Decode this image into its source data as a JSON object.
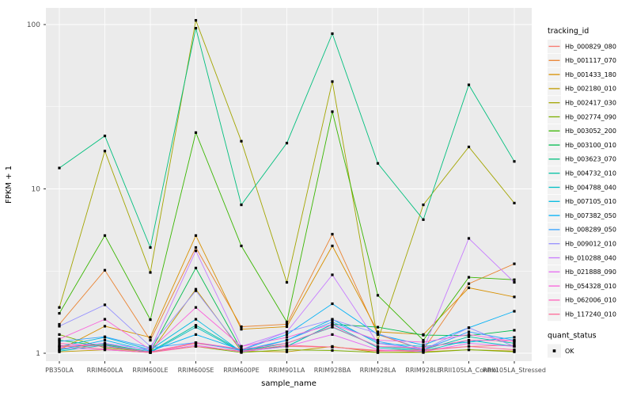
{
  "chart_data": {
    "type": "line",
    "title": "",
    "xlabel": "sample_name",
    "ylabel": "FPKM + 1",
    "y_scale": "log10",
    "ylim": [
      0.9,
      126
    ],
    "y_ticks": [
      1,
      10,
      100
    ],
    "y_minor_ticks": [
      3.162,
      31.62
    ],
    "grid": "on",
    "legend_position": "right",
    "legend_title": "tracking_id",
    "quant_legend": {
      "title": "quant_status",
      "label": "OK",
      "marker_color": "#000000"
    },
    "panel_bg": "#EBEBEB",
    "grid_color": "#FFFFFF",
    "tick_label_color": "#4D4D4D",
    "axis_title_color": "#000000",
    "categories": [
      "PB350LA",
      "RRIM600LA",
      "RRIM600LE",
      "RRIM600SE",
      "RRIM600PE",
      "RRIM901LA",
      "RRIM928BA",
      "RRIM928LA",
      "RRIM928LE",
      "RRII105LA_Control",
      "RRII105LA_Stressed"
    ],
    "series": [
      {
        "name": "Hb_000829_080",
        "color": "#F8766D",
        "values": [
          1.09,
          1.13,
          1.01,
          1.15,
          1.05,
          1.1,
          1.09,
          1.04,
          1.05,
          1.1,
          1.12
        ]
      },
      {
        "name": "Hb_001117_070",
        "color": "#EA8331",
        "values": [
          1.5,
          3.2,
          1.2,
          4.4,
          1.45,
          1.5,
          5.3,
          1.3,
          1.05,
          2.65,
          3.5
        ]
      },
      {
        "name": "Hb_001433_180",
        "color": "#D89000",
        "values": [
          1.05,
          1.46,
          1.25,
          5.2,
          1.4,
          1.45,
          4.5,
          1.35,
          1.3,
          2.5,
          2.2
        ]
      },
      {
        "name": "Hb_002180_010",
        "color": "#C09B00",
        "values": [
          1.02,
          1.05,
          1.01,
          2.45,
          1.03,
          1.02,
          1.1,
          1.01,
          1.02,
          1.05,
          1.03
        ]
      },
      {
        "name": "Hb_002417_030",
        "color": "#A3A500",
        "values": [
          1.9,
          17.0,
          3.1,
          106.0,
          19.5,
          2.7,
          45.0,
          1.2,
          8.0,
          18.0,
          8.2
        ]
      },
      {
        "name": "Hb_002774_090",
        "color": "#7CAE00",
        "values": [
          1.3,
          1.08,
          1.02,
          1.1,
          1.01,
          1.05,
          1.04,
          1.01,
          1.01,
          1.05,
          1.02
        ]
      },
      {
        "name": "Hb_003052_200",
        "color": "#39B600",
        "values": [
          1.75,
          5.2,
          1.6,
          22.0,
          4.5,
          1.55,
          29.5,
          2.25,
          1.2,
          2.9,
          2.8
        ]
      },
      {
        "name": "Hb_003100_010",
        "color": "#00BB4E",
        "values": [
          1.2,
          1.1,
          1.02,
          3.3,
          1.05,
          1.1,
          1.5,
          1.44,
          1.29,
          1.28,
          1.38
        ]
      },
      {
        "name": "Hb_003623_070",
        "color": "#00BF7D",
        "values": [
          13.4,
          21.0,
          4.4,
          95.0,
          8.0,
          19.0,
          88.0,
          14.3,
          6.5,
          43.0,
          14.7
        ]
      },
      {
        "name": "Hb_004732_010",
        "color": "#00C1A3",
        "values": [
          1.05,
          1.14,
          1.02,
          1.48,
          1.03,
          1.15,
          1.44,
          1.1,
          1.05,
          1.26,
          1.15
        ]
      },
      {
        "name": "Hb_004788_040",
        "color": "#00BFC4",
        "values": [
          1.03,
          1.12,
          1.01,
          1.44,
          1.02,
          1.1,
          1.5,
          1.08,
          1.03,
          1.2,
          1.1
        ]
      },
      {
        "name": "Hb_007105_010",
        "color": "#00BAE0",
        "values": [
          1.1,
          1.25,
          1.05,
          1.61,
          1.02,
          1.2,
          1.61,
          1.15,
          1.1,
          1.17,
          1.25
        ]
      },
      {
        "name": "Hb_007382_050",
        "color": "#00B0F6",
        "values": [
          1.05,
          1.2,
          1.03,
          1.3,
          1.05,
          1.3,
          2.0,
          1.3,
          1.12,
          1.43,
          1.8
        ]
      },
      {
        "name": "Hb_008289_050",
        "color": "#35A2FF",
        "values": [
          1.18,
          1.26,
          1.08,
          1.16,
          1.04,
          1.2,
          1.55,
          1.18,
          1.05,
          1.35,
          1.2
        ]
      },
      {
        "name": "Hb_009012_010",
        "color": "#9590FF",
        "values": [
          1.46,
          1.97,
          1.1,
          2.4,
          1.05,
          1.35,
          1.6,
          1.32,
          1.05,
          1.43,
          1.1
        ]
      },
      {
        "name": "Hb_010288_040",
        "color": "#C77CFF",
        "values": [
          1.1,
          1.15,
          1.05,
          4.2,
          1.1,
          1.35,
          3.0,
          1.15,
          1.05,
          5.0,
          2.7
        ]
      },
      {
        "name": "Hb_021888_090",
        "color": "#E76BF3",
        "values": [
          1.08,
          1.05,
          1.01,
          1.12,
          1.02,
          1.1,
          1.3,
          1.05,
          1.02,
          1.15,
          1.1
        ]
      },
      {
        "name": "Hb_054328_010",
        "color": "#FA62DB",
        "values": [
          1.22,
          1.61,
          1.05,
          1.9,
          1.1,
          1.25,
          1.5,
          1.2,
          1.17,
          1.3,
          1.18
        ]
      },
      {
        "name": "Hb_062006_010",
        "color": "#FF62BC",
        "values": [
          1.15,
          1.1,
          1.02,
          1.16,
          1.06,
          1.15,
          1.45,
          1.1,
          1.08,
          1.2,
          1.19
        ]
      },
      {
        "name": "Hb_117240_010",
        "color": "#FF6A98",
        "values": [
          1.12,
          1.06,
          1.01,
          1.1,
          1.03,
          1.12,
          1.09,
          1.03,
          1.04,
          1.1,
          1.05
        ]
      }
    ]
  }
}
